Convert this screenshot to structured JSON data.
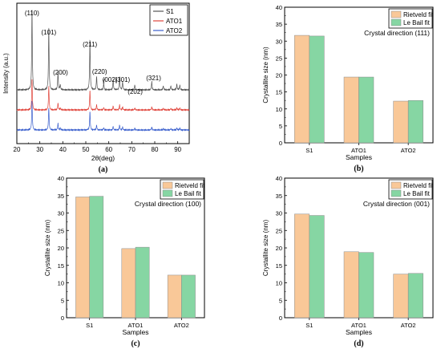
{
  "chart_data": [
    {
      "type": "line",
      "panel_label": "(a)",
      "xlabel": "2θ(deg)",
      "ylabel": "Intensity (a.u.)",
      "xlim": [
        20,
        95
      ],
      "xticks": [
        20,
        30,
        40,
        50,
        60,
        70,
        80,
        90
      ],
      "legend": {
        "placement": "top-right",
        "entries": [
          "S1",
          "ATO1",
          "ATO2"
        ]
      },
      "series": [
        {
          "name": "S1",
          "color": "#555555",
          "offset": 2.0
        },
        {
          "name": "ATO1",
          "color": "#e0453c",
          "offset": 1.0
        },
        {
          "name": "ATO2",
          "color": "#3a5fcd",
          "offset": 0.0
        }
      ],
      "peaks": [
        {
          "x": 26.6,
          "h": 1.0
        },
        {
          "x": 33.9,
          "h": 0.75
        },
        {
          "x": 37.9,
          "h": 0.22
        },
        {
          "x": 38.9,
          "h": 0.06
        },
        {
          "x": 51.8,
          "h": 0.62
        },
        {
          "x": 54.7,
          "h": 0.16
        },
        {
          "x": 57.8,
          "h": 0.08
        },
        {
          "x": 61.9,
          "h": 0.12
        },
        {
          "x": 64.7,
          "h": 0.16
        },
        {
          "x": 66.0,
          "h": 0.1
        },
        {
          "x": 71.3,
          "h": 0.06
        },
        {
          "x": 78.7,
          "h": 0.1
        },
        {
          "x": 83.7,
          "h": 0.05
        },
        {
          "x": 87.0,
          "h": 0.05
        },
        {
          "x": 89.6,
          "h": 0.07
        },
        {
          "x": 90.9,
          "h": 0.06
        }
      ],
      "annotations": [
        {
          "text": "(110)",
          "x": 26.6,
          "color": "#000000"
        },
        {
          "text": "(101)",
          "x": 33.9,
          "color": "#000000"
        },
        {
          "text": "(200)",
          "x": 39.0,
          "color": "#e0453c"
        },
        {
          "text": "(211)",
          "x": 51.8,
          "color": "#000000"
        },
        {
          "text": "(220)",
          "x": 56.0,
          "color": "#000000"
        },
        {
          "text": "(002)",
          "x": 60.5,
          "color": "#000000"
        },
        {
          "text": "(301)",
          "x": 66.0,
          "color": "#000000"
        },
        {
          "text": "(202)",
          "x": 71.5,
          "color": "#000000"
        },
        {
          "text": "(321)",
          "x": 79.5,
          "color": "#000000"
        }
      ]
    },
    {
      "type": "bar",
      "panel_label": "(b)",
      "annotation": "Crystal direction (111)",
      "xlabel": "Samples",
      "ylabel": "Crystallite size (nm)",
      "ylim": [
        0,
        40
      ],
      "yticks": [
        0,
        5,
        10,
        15,
        20,
        25,
        30,
        35,
        40
      ],
      "categories": [
        "S1",
        "ATO1",
        "ATO2"
      ],
      "legend": {
        "placement": "top-right"
      },
      "series": [
        {
          "name": "Rietveld fit",
          "color": "#f9c898",
          "values": [
            31.7,
            19.4,
            12.3
          ]
        },
        {
          "name": "Le Bail fit",
          "color": "#86d6a3",
          "values": [
            31.5,
            19.4,
            12.5
          ]
        }
      ]
    },
    {
      "type": "bar",
      "panel_label": "(c)",
      "annotation": "Crystal direction (100)",
      "xlabel": "Samples",
      "ylabel": "Crystallite size (nm)",
      "ylim": [
        0,
        40
      ],
      "yticks": [
        0,
        5,
        10,
        15,
        20,
        25,
        30,
        35,
        40
      ],
      "categories": [
        "S1",
        "ATO1",
        "ATO2"
      ],
      "legend": {
        "placement": "top-right"
      },
      "series": [
        {
          "name": "Rietveld fit",
          "color": "#f9c898",
          "values": [
            34.6,
            19.8,
            12.2
          ]
        },
        {
          "name": "Le Bail fit",
          "color": "#86d6a3",
          "values": [
            34.8,
            20.2,
            12.2
          ]
        }
      ]
    },
    {
      "type": "bar",
      "panel_label": "(d)",
      "annotation": "Crystal direction (001)",
      "xlabel": "Samples",
      "ylabel": "Crystallite size (nm)",
      "ylim": [
        0,
        40
      ],
      "yticks": [
        0,
        5,
        10,
        15,
        20,
        25,
        30,
        35,
        40
      ],
      "categories": [
        "S1",
        "ATO1",
        "ATO2"
      ],
      "legend": {
        "placement": "top-right"
      },
      "series": [
        {
          "name": "Rietveld fit",
          "color": "#f9c898",
          "values": [
            29.7,
            18.9,
            12.5
          ]
        },
        {
          "name": "Le Bail fit",
          "color": "#86d6a3",
          "values": [
            29.3,
            18.7,
            12.7
          ]
        }
      ]
    }
  ]
}
